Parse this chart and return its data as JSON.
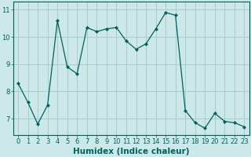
{
  "x": [
    0,
    1,
    2,
    3,
    4,
    5,
    6,
    7,
    8,
    9,
    10,
    11,
    12,
    13,
    14,
    15,
    16,
    17,
    18,
    19,
    20,
    21,
    22,
    23
  ],
  "y": [
    8.3,
    7.6,
    6.8,
    7.5,
    10.6,
    8.9,
    8.65,
    10.35,
    10.2,
    10.3,
    10.35,
    9.85,
    9.55,
    9.75,
    10.3,
    10.9,
    10.8,
    7.3,
    6.85,
    6.65,
    7.2,
    6.9,
    6.85,
    6.7
  ],
  "line_color": "#006060",
  "marker": "D",
  "marker_size": 2.0,
  "bg_color": "#cce8e8",
  "grid_color": "#aacccc",
  "xlabel": "Humidex (Indice chaleur)",
  "ylim": [
    6.4,
    11.3
  ],
  "xlim": [
    -0.5,
    23.5
  ],
  "yticks": [
    7,
    8,
    9,
    10,
    11
  ],
  "xticks": [
    0,
    1,
    2,
    3,
    4,
    5,
    6,
    7,
    8,
    9,
    10,
    11,
    12,
    13,
    14,
    15,
    16,
    17,
    18,
    19,
    20,
    21,
    22,
    23
  ],
  "tick_fontsize": 6.0,
  "xlabel_fontsize": 7.5,
  "axis_color": "#006060"
}
